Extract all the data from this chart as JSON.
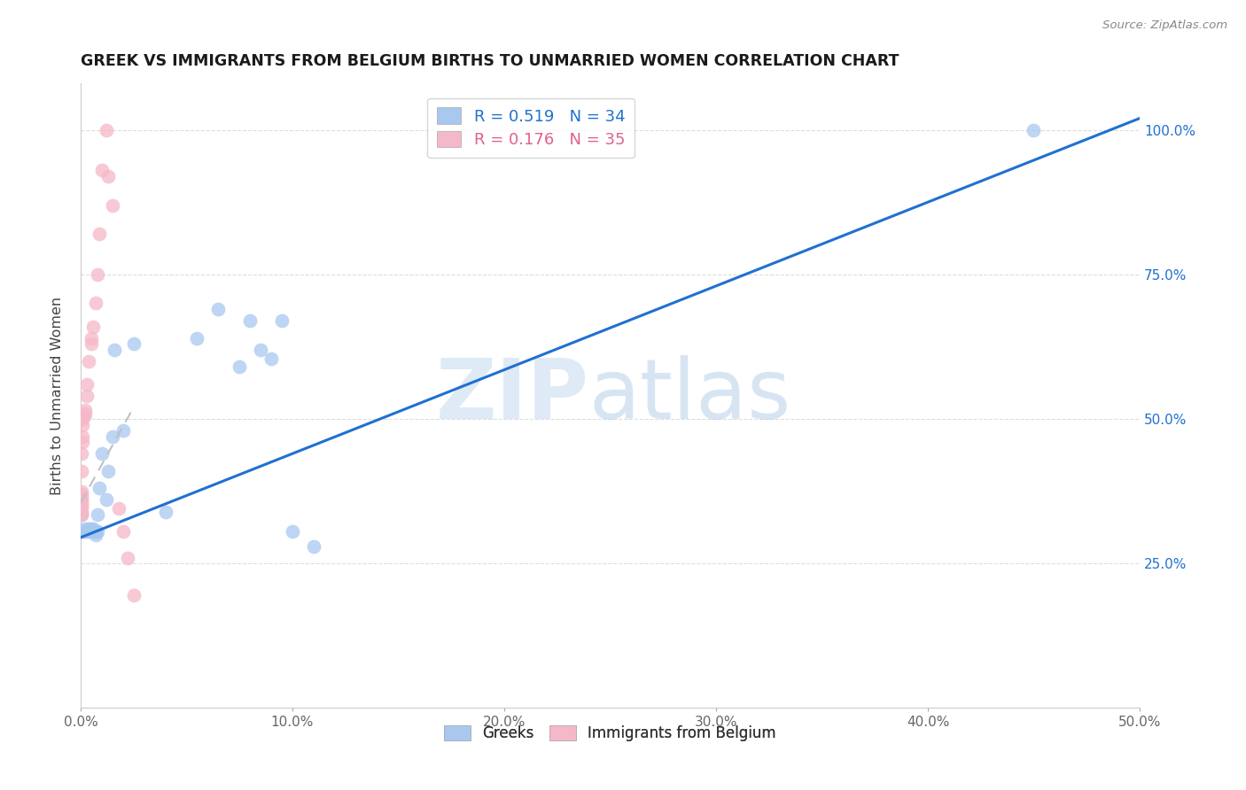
{
  "title": "GREEK VS IMMIGRANTS FROM BELGIUM BIRTHS TO UNMARRIED WOMEN CORRELATION CHART",
  "source": "Source: ZipAtlas.com",
  "ylabel": "Births to Unmarried Women",
  "xlim": [
    0.0,
    0.5
  ],
  "ylim": [
    0.0,
    1.08
  ],
  "xtick_positions": [
    0.0,
    0.1,
    0.2,
    0.3,
    0.4,
    0.5
  ],
  "xtick_labels": [
    "0.0%",
    "10.0%",
    "20.0%",
    "30.0%",
    "40.0%",
    "50.0%"
  ],
  "ytick_positions": [
    0.0,
    0.25,
    0.5,
    0.75,
    1.0
  ],
  "ytick_labels": [
    "",
    "25.0%",
    "50.0%",
    "75.0%",
    "100.0%"
  ],
  "blue_color": "#A8C8F0",
  "pink_color": "#F5B8C8",
  "blue_line_color": "#2070D0",
  "pink_line_color": "#E06090",
  "grid_color": "#DDDDDD",
  "legend_R_blue": "0.519",
  "legend_N_blue": "34",
  "legend_R_pink": "0.176",
  "legend_N_pink": "35",
  "blue_scatter_x": [
    0.0005,
    0.001,
    0.0015,
    0.002,
    0.003,
    0.004,
    0.004,
    0.005,
    0.005,
    0.006,
    0.006,
    0.007,
    0.007,
    0.008,
    0.008,
    0.009,
    0.01,
    0.012,
    0.013,
    0.015,
    0.016,
    0.02,
    0.025,
    0.04,
    0.055,
    0.065,
    0.075,
    0.08,
    0.085,
    0.09,
    0.095,
    0.1,
    0.11,
    0.45
  ],
  "blue_scatter_y": [
    0.335,
    0.305,
    0.305,
    0.31,
    0.305,
    0.305,
    0.31,
    0.305,
    0.31,
    0.305,
    0.31,
    0.3,
    0.305,
    0.305,
    0.335,
    0.38,
    0.44,
    0.36,
    0.41,
    0.47,
    0.62,
    0.48,
    0.63,
    0.34,
    0.64,
    0.69,
    0.59,
    0.67,
    0.62,
    0.605,
    0.67,
    0.305,
    0.28,
    1.0
  ],
  "pink_scatter_x": [
    0.0003,
    0.0003,
    0.0003,
    0.0003,
    0.0003,
    0.0003,
    0.0003,
    0.0003,
    0.0003,
    0.0005,
    0.0005,
    0.001,
    0.001,
    0.001,
    0.001,
    0.0015,
    0.002,
    0.002,
    0.003,
    0.003,
    0.004,
    0.005,
    0.005,
    0.006,
    0.007,
    0.008,
    0.009,
    0.01,
    0.012,
    0.013,
    0.015,
    0.018,
    0.02,
    0.022,
    0.025
  ],
  "pink_scatter_y": [
    0.335,
    0.34,
    0.345,
    0.35,
    0.355,
    0.36,
    0.365,
    0.37,
    0.375,
    0.41,
    0.44,
    0.46,
    0.47,
    0.49,
    0.5,
    0.505,
    0.51,
    0.515,
    0.54,
    0.56,
    0.6,
    0.63,
    0.64,
    0.66,
    0.7,
    0.75,
    0.82,
    0.93,
    1.0,
    0.92,
    0.87,
    0.345,
    0.305,
    0.26,
    0.195
  ],
  "blue_trend_x": [
    0.0,
    0.5
  ],
  "blue_trend_y": [
    0.295,
    1.02
  ],
  "pink_trend_x": [
    0.0,
    0.025
  ],
  "pink_trend_y": [
    0.355,
    0.52
  ],
  "pink_trend_style": "dashed_gray",
  "watermark_zip_color": "#C8DCF0",
  "watermark_atlas_color": "#B0CCE8"
}
